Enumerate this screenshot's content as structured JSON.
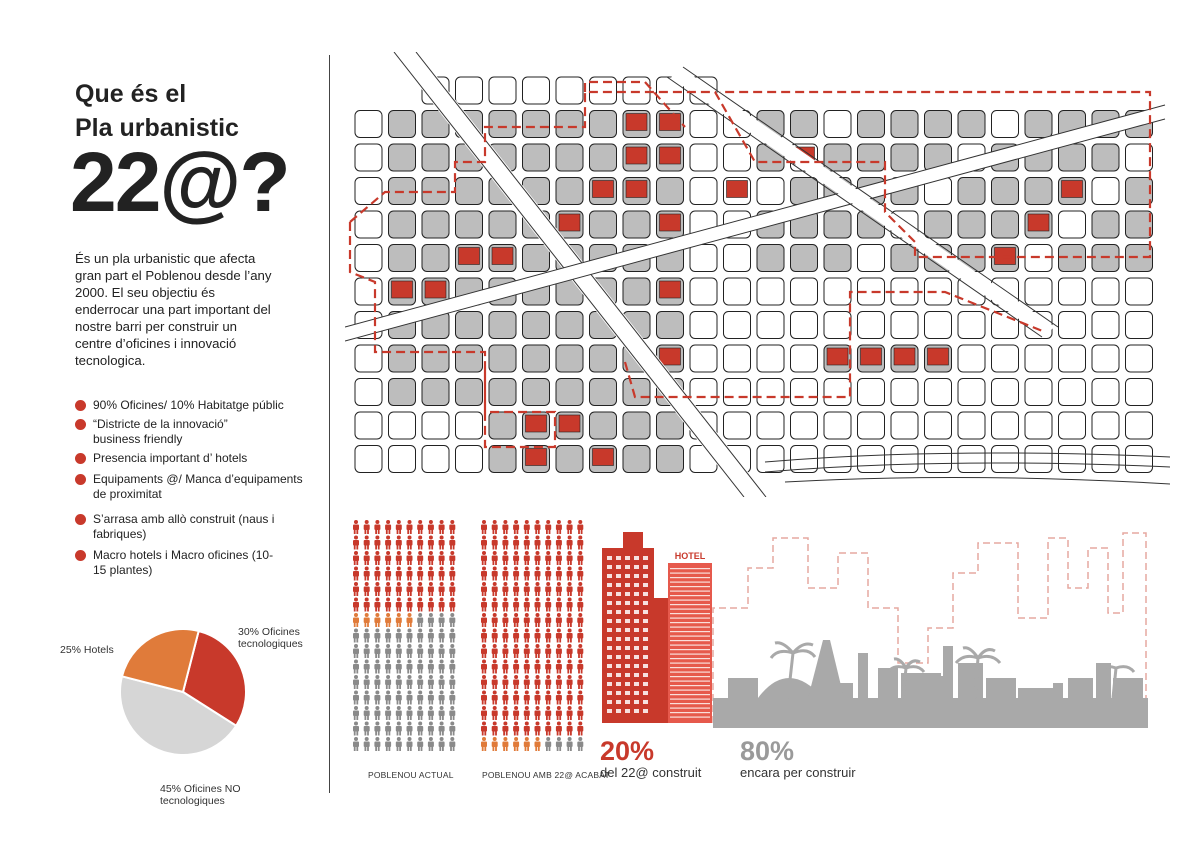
{
  "colors": {
    "red": "#c8392b",
    "orange": "#e07b3a",
    "grey": "#bdbdbd",
    "dark": "#222222",
    "people_grey": "#8a8a8a"
  },
  "title": {
    "line1": "Que és el",
    "line2": "Pla urbanistic",
    "line3": "22@?"
  },
  "intro": "És un pla urbanistic que afecta gran part el Poblenou desde l’any 2000. El seu objectiu és enderrocar una part important del nostre barri per construir un centre d’oficines i innovació tecnologica.",
  "bullets": [
    "90% Oficines/ 10% Habitatge públic",
    "“Districte de la innovació” business friendly",
    "Presencia important d’ hotels",
    "Equipaments @/ Manca d’equipaments de proximitat",
    "S’arrasa amb allò construit (naus i fabriques)",
    "Macro hotels i Macro oficines (10-15 plantes)"
  ],
  "chart_data": {
    "type": "pie",
    "slices": [
      {
        "label": "30% Oficines tecnologiques",
        "value": 30,
        "color": "#c8392b"
      },
      {
        "label": "25% Hotels",
        "value": 25,
        "color": "#e07b3a"
      },
      {
        "label": "45% Oficines NO tecnologiques",
        "value": 45,
        "color": "#d6d6d6"
      }
    ]
  },
  "people": {
    "caption_actual": "POBLENOU ACTUAL",
    "caption_future": "POBLENOU AMB 22@ ACABAT"
  },
  "skyline": {
    "hotel_sign": "HOTEL"
  },
  "progress": {
    "built_pct": "20%",
    "built_label": "del 22@ construit",
    "remaining_pct": "80%",
    "remaining_label": "encara per construir"
  }
}
